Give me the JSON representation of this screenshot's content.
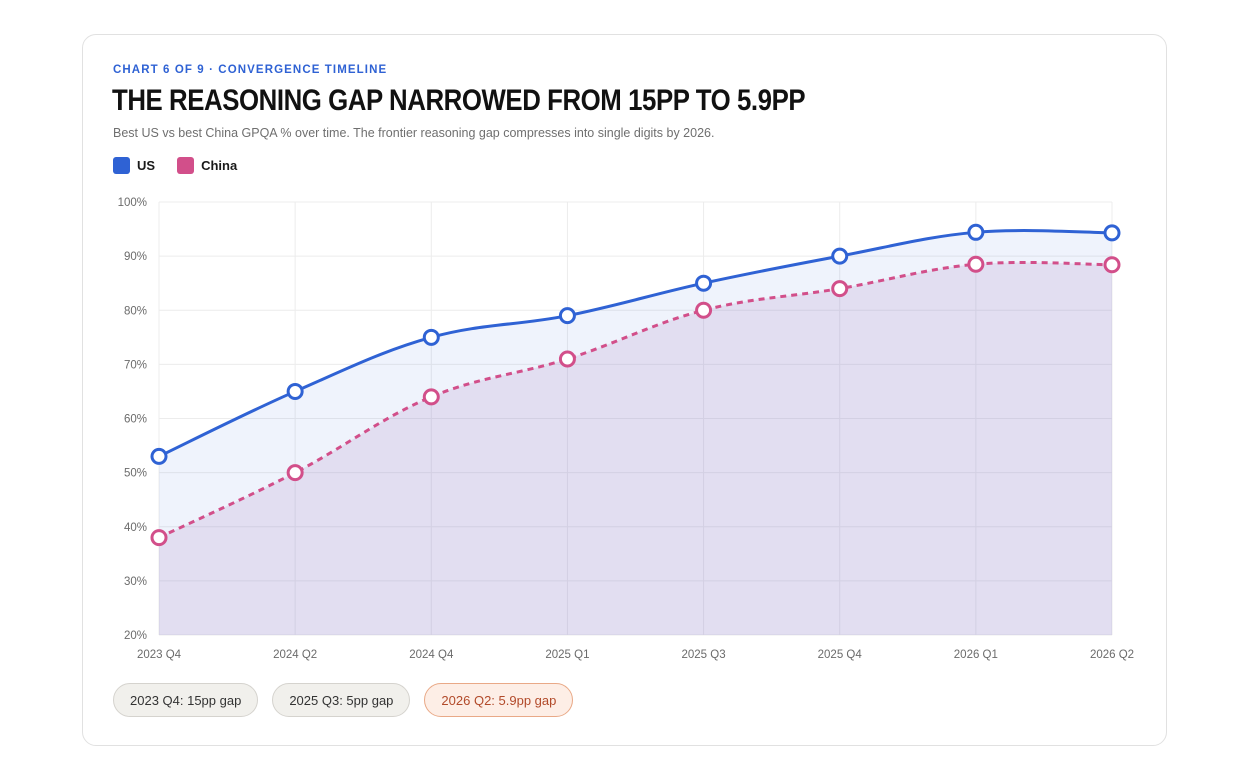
{
  "eyebrow": "CHART 6 OF 9 · CONVERGENCE TIMELINE",
  "title": "THE REASONING GAP NARROWED FROM 15PP TO 5.9PP",
  "subtitle": "Best US vs best China GPQA % over time. The frontier reasoning gap compresses into single digits by 2026.",
  "legend": [
    {
      "label": "US",
      "color": "#2f62d4"
    },
    {
      "label": "China",
      "color": "#d24f8a"
    }
  ],
  "pills": [
    {
      "label": "2023 Q4: 15pp gap"
    },
    {
      "label": "2025 Q3: 5pp gap"
    },
    {
      "label": "2026 Q2: 5.9pp gap"
    }
  ],
  "chart_data": {
    "type": "line",
    "categories": [
      "2023 Q4",
      "2024 Q2",
      "2024 Q4",
      "2025 Q1",
      "2025 Q3",
      "2025 Q4",
      "2026 Q1",
      "2026 Q2"
    ],
    "series": [
      {
        "name": "US",
        "values": [
          53,
          65,
          75,
          79,
          85,
          90,
          94.4,
          94.3
        ],
        "color": "#2f62d4",
        "style": "solid"
      },
      {
        "name": "China",
        "values": [
          38,
          50,
          64,
          71,
          80,
          84,
          88.5,
          88.4
        ],
        "color": "#d24f8a",
        "style": "dashed"
      }
    ],
    "ylim": [
      20,
      100
    ],
    "yticks": [
      20,
      30,
      40,
      50,
      60,
      70,
      80,
      90,
      100
    ],
    "ytick_suffix": "%",
    "grid": true,
    "xlabel": "",
    "ylabel": ""
  }
}
